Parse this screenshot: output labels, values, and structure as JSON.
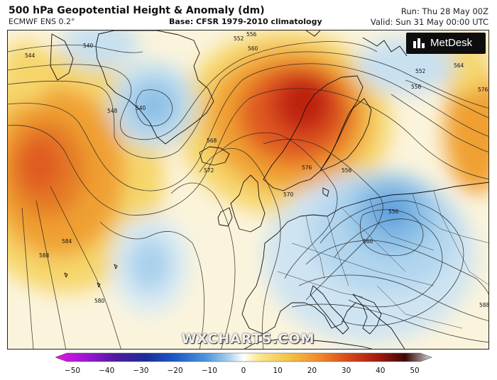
{
  "header": {
    "title": "500 hPa Geopotential Height & Anomaly (dm)",
    "model": "ECMWF ENS 0.2°",
    "base": "Base: CFSR 1979-2010 climatology",
    "run": "Run: Thu 28 May 00Z",
    "valid": "Valid: Sun 31 May 00:00 UTC"
  },
  "brand": {
    "name": "MetDesk"
  },
  "watermark": "WXCHARTS.COM",
  "contour_labels": [
    "544",
    "540",
    "548",
    "540",
    "552",
    "556",
    "560",
    "568",
    "572",
    "576",
    "584",
    "588",
    "580",
    "556",
    "560",
    "556",
    "552",
    "564",
    "576",
    "588",
    "570",
    "556"
  ],
  "legend": {
    "ticks": [
      "−50",
      "−40",
      "−30",
      "−20",
      "−10",
      "0",
      "10",
      "20",
      "30",
      "40",
      "50"
    ],
    "colors": [
      "#e018e0",
      "#8a12c8",
      "#2c1890",
      "#1d3cc0",
      "#3f82d6",
      "#a8d0ec",
      "#ffffff",
      "#f6e070",
      "#f0a030",
      "#e05a20",
      "#b81c10",
      "#5a0a08",
      "#c8c8c8"
    ]
  }
}
